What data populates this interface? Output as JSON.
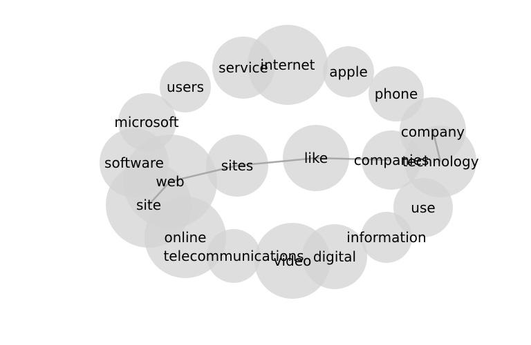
{
  "bubble_color": "#d3d3d3",
  "edge_color": "#a8a8a8",
  "text_color": "#000000",
  "words": {
    "internet": "internet",
    "service": "service",
    "apple": "apple",
    "users": "users",
    "phone": "phone",
    "microsoft": "microsoft",
    "company": "company",
    "technology": "technology",
    "companies": "companies",
    "software": "software",
    "like": "like",
    "sites": "sites",
    "web": "web",
    "site": "site",
    "use": "use",
    "online": "online",
    "information": "information",
    "telecommunications": "telecommunications",
    "video": "video",
    "digital": "digital"
  },
  "edges": [
    [
      "web",
      "sites"
    ],
    [
      "sites",
      "like"
    ],
    [
      "like",
      "companies"
    ],
    [
      "web",
      "site"
    ],
    [
      "company",
      "technology"
    ]
  ]
}
